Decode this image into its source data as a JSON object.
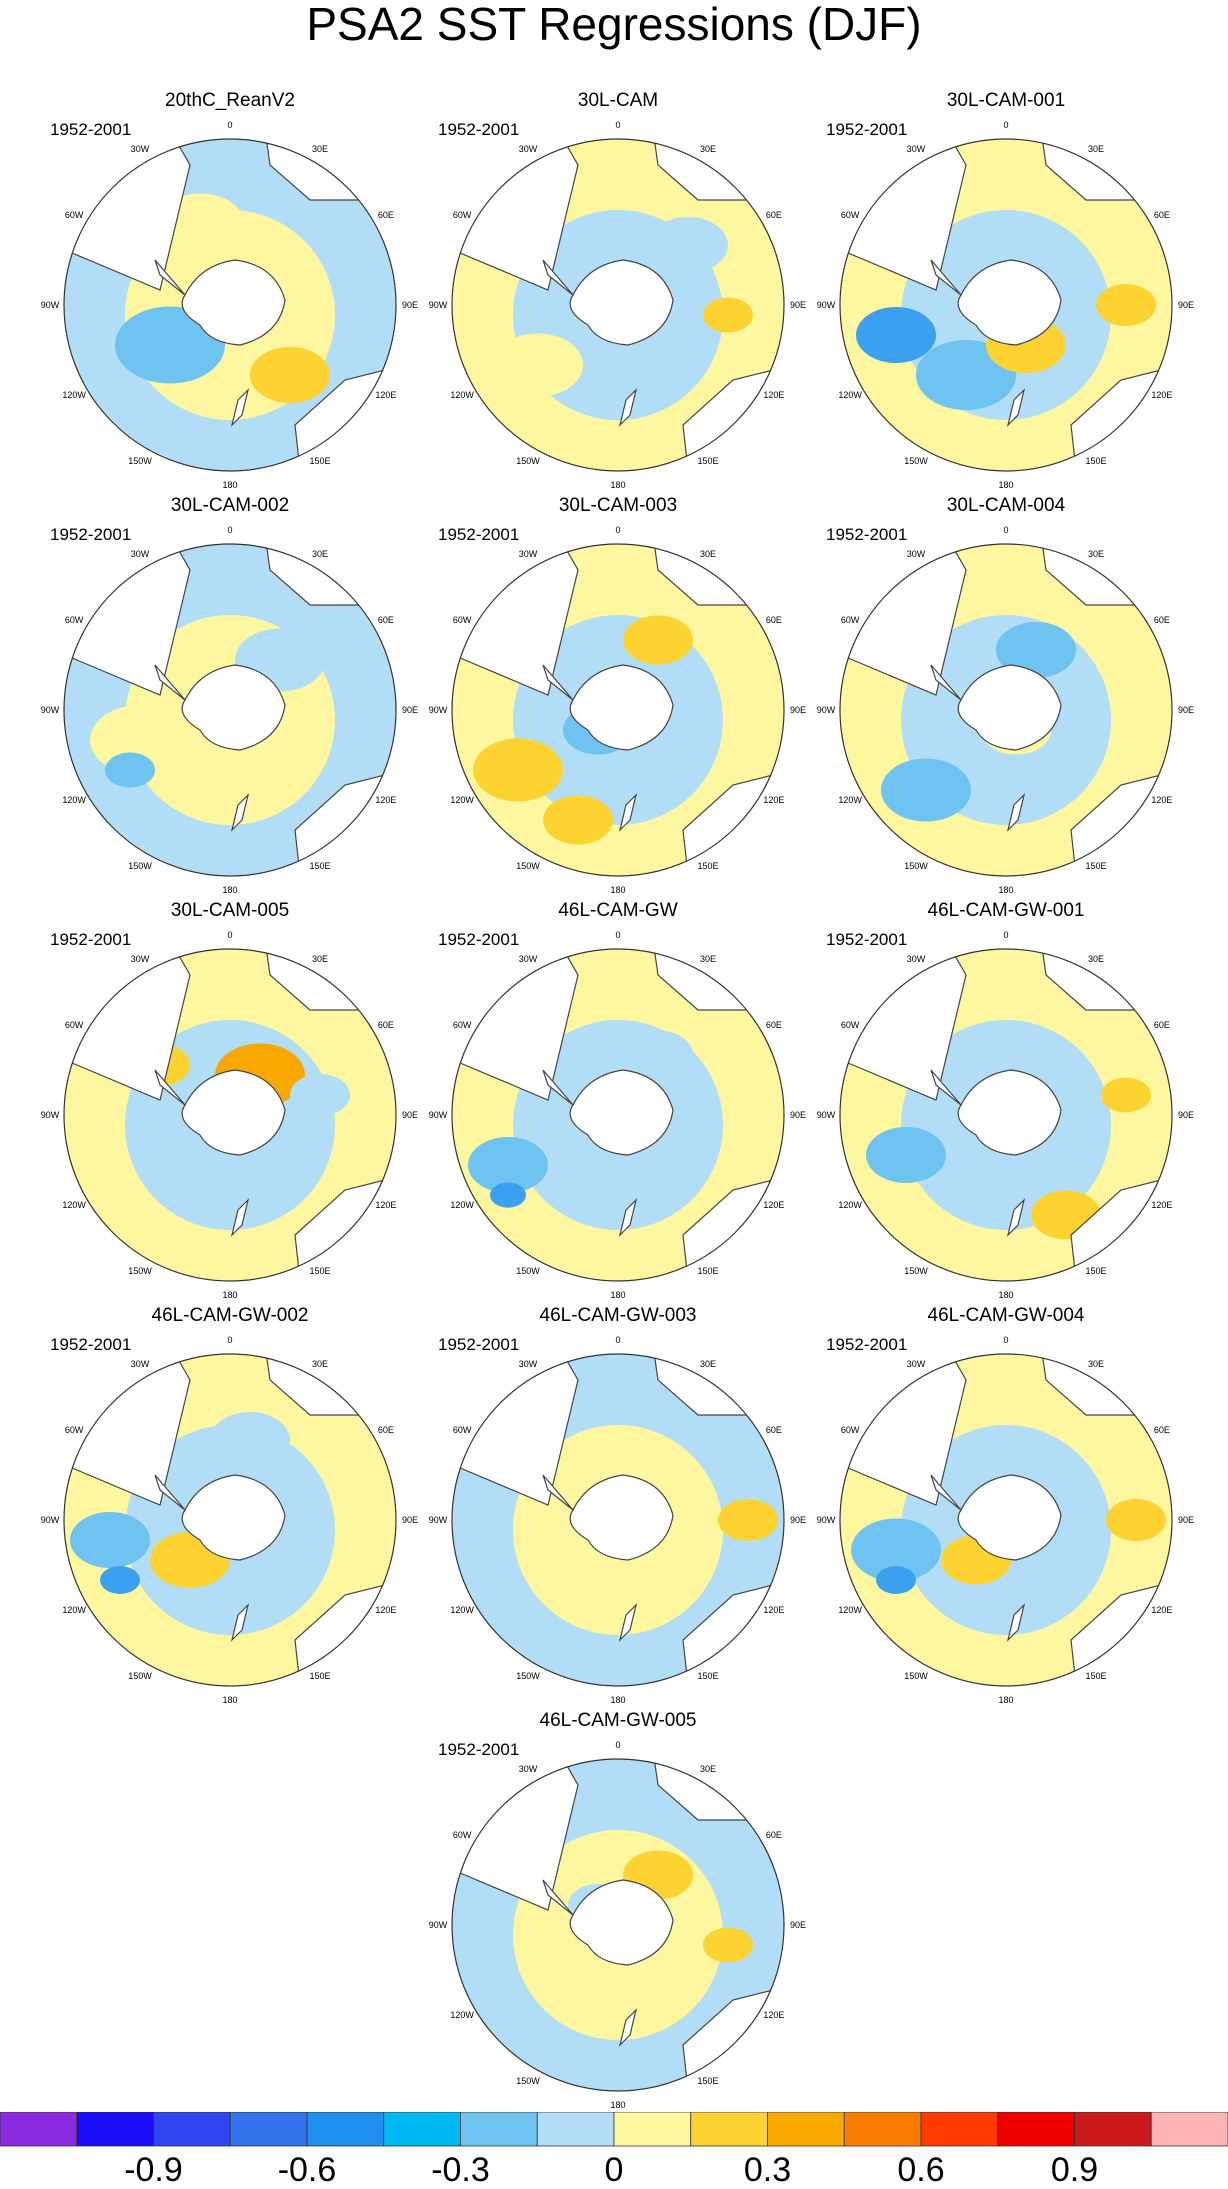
{
  "title": "PSA2 SST Regressions (DJF)",
  "colors": {
    "land": "#ffffff",
    "coast": "#444444",
    "outline": "#333333",
    "neg_weak": "#b2ddf7",
    "neg_mod": "#6ec3f0",
    "neg_strong": "#3aa0ef",
    "neg_vstrong": "#1e87f0",
    "pos_weak": "#fff7a0",
    "pos_mod": "#fdd331",
    "pos_strong": "#f9a800",
    "pos_vstrong": "#f86e00"
  },
  "map_labels": {
    "lon_0": "0",
    "lon_30e": "30E",
    "lon_60e": "60E",
    "lon_90e": "90E",
    "lon_120e": "120E",
    "lon_150e": "150E",
    "lon_180": "180",
    "lon_150w": "150W",
    "lon_120w": "120W",
    "lon_90w": "90W",
    "lon_60w": "60W",
    "lon_30w": "30W"
  },
  "panels": [
    {
      "title": "20thC_ReanV2",
      "period": "1952-2001"
    },
    {
      "title": "30L-CAM",
      "period": "1952-2001"
    },
    {
      "title": "30L-CAM-001",
      "period": "1952-2001"
    },
    {
      "title": "30L-CAM-002",
      "period": "1952-2001"
    },
    {
      "title": "30L-CAM-003",
      "period": "1952-2001"
    },
    {
      "title": "30L-CAM-004",
      "period": "1952-2001"
    },
    {
      "title": "30L-CAM-005",
      "period": "1952-2001"
    },
    {
      "title": "46L-CAM-GW",
      "period": "1952-2001"
    },
    {
      "title": "46L-CAM-GW-001",
      "period": "1952-2001"
    },
    {
      "title": "46L-CAM-GW-002",
      "period": "1952-2001"
    },
    {
      "title": "46L-CAM-GW-003",
      "period": "1952-2001"
    },
    {
      "title": "46L-CAM-GW-004",
      "period": "1952-2001"
    },
    {
      "title": "46L-CAM-GW-005",
      "period": "1952-2001"
    }
  ],
  "colorbar": {
    "colors": [
      "#8a2be2",
      "#1a0df5",
      "#2e45f0",
      "#3373ec",
      "#1e8fef",
      "#00b9f2",
      "#6ec3f0",
      "#b2ddf7",
      "#fff7a0",
      "#fdd331",
      "#f9a800",
      "#fa7d00",
      "#ff3c00",
      "#f00000",
      "#cc1a1a",
      "#ffb4b4"
    ],
    "labels": [
      "-0.9",
      "-0.6",
      "-0.3",
      "0",
      "0.3",
      "0.6",
      "0.9"
    ]
  }
}
